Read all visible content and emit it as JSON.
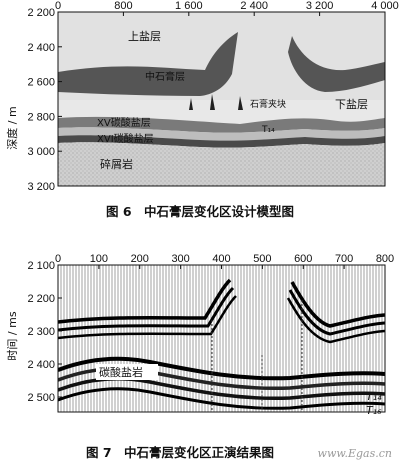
{
  "chart_data": [
    {
      "type": "area",
      "caption": "图 6　中石膏层变化区设计模型图",
      "ylabel": "深度 / m",
      "x_ticks": [
        "0",
        "800",
        "1 600",
        "2 400",
        "3 200",
        "4 000"
      ],
      "y_ticks": [
        "2 200",
        "2 400",
        "2 600",
        "2 800",
        "3 000",
        "3 200"
      ],
      "xlim": [
        0,
        4000
      ],
      "ylim": [
        2200,
        3200
      ],
      "layers": [
        {
          "name": "上盐层"
        },
        {
          "name": "中石膏层"
        },
        {
          "name": "石膏夹块"
        },
        {
          "name": "下盐层"
        },
        {
          "name": "XV碳酸盐层"
        },
        {
          "name": "T₁₄"
        },
        {
          "name": "XVI碳酸盐层"
        },
        {
          "name": "碎屑岩"
        }
      ]
    },
    {
      "type": "line",
      "caption": "图 7　中石膏层变化区正演结果图",
      "ylabel": "时间 / ms",
      "x_ticks": [
        "0",
        "100",
        "200",
        "300",
        "400",
        "500",
        "600",
        "700",
        "800"
      ],
      "y_ticks": [
        "2 100",
        "2 200",
        "2 300",
        "2 400",
        "2 500"
      ],
      "xlim": [
        0,
        800
      ],
      "ylim": [
        2100,
        2550
      ],
      "annotations": [
        "碳酸盐岩",
        "T₁₄",
        "T₁₆"
      ]
    }
  ],
  "watermark": "www.Egas.cn"
}
